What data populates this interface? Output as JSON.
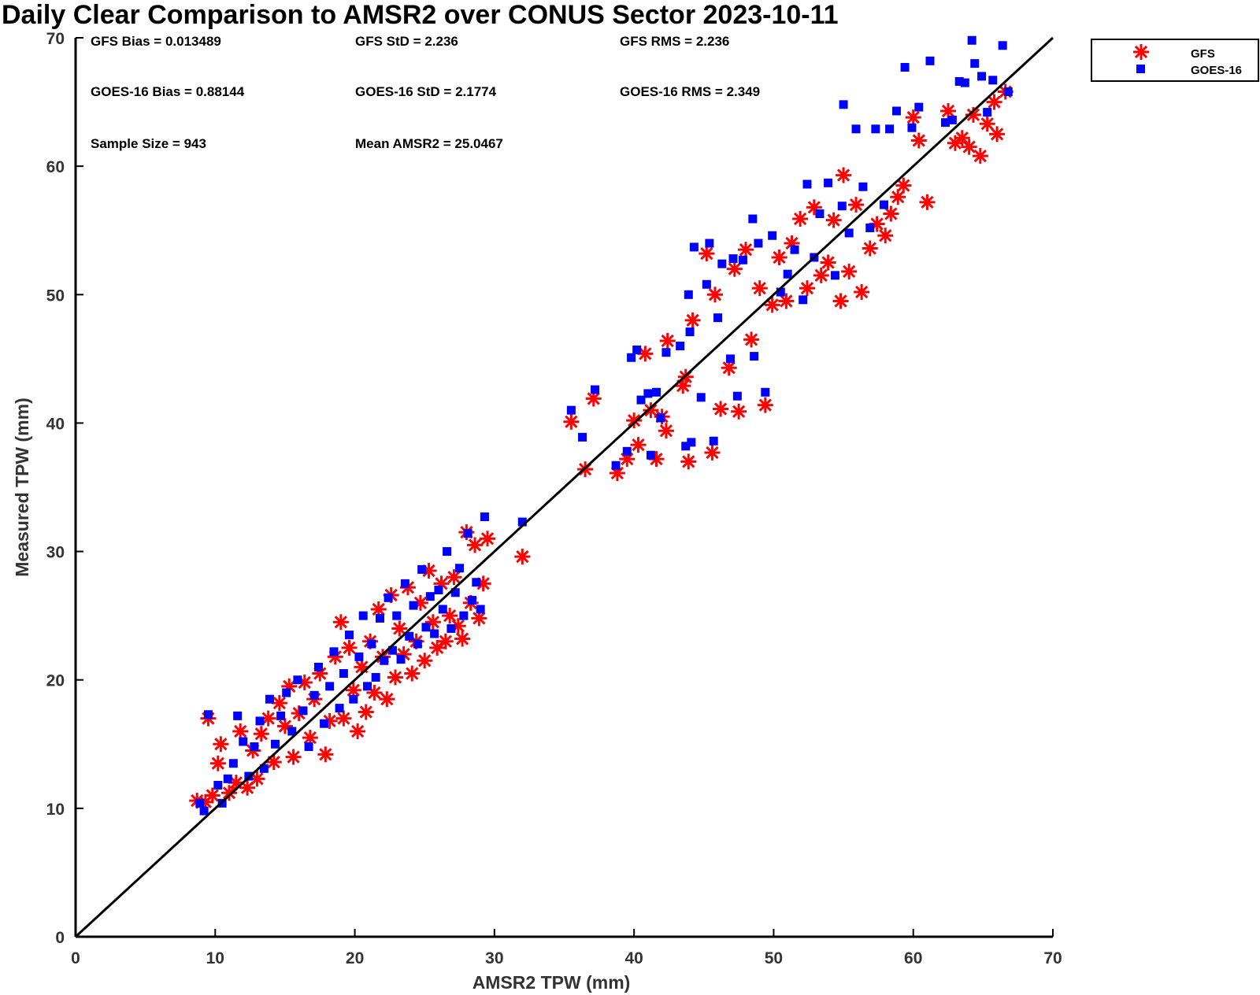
{
  "chart_data": {
    "type": "scatter",
    "title": "Daily Clear Comparison to AMSR2 over CONUS Sector 2023-10-11",
    "xlabel": "AMSR2 TPW (mm)",
    "ylabel": "Measured TPW (mm)",
    "xlim": [
      0,
      70
    ],
    "ylim": [
      0,
      70
    ],
    "xticks": [
      "0",
      "10",
      "20",
      "30",
      "40",
      "50",
      "60",
      "70"
    ],
    "yticks": [
      "0",
      "10",
      "20",
      "30",
      "40",
      "50",
      "60",
      "70"
    ],
    "grid": false,
    "legend_position": "outside top-right",
    "reference_line": {
      "type": "one-to-one",
      "from": [
        0,
        0
      ],
      "to": [
        70,
        70
      ],
      "color": "#000000"
    },
    "stats": [
      "GFS Bias = 0.013489",
      "GFS StD = 2.236",
      "GFS RMS = 2.236",
      "GOES-16 Bias = 0.88144",
      "GOES-16 StD = 2.1774",
      "GOES-16 RMS = 2.349",
      "Sample Size = 943",
      "Mean AMSR2 = 25.0467"
    ],
    "series": [
      {
        "name": "GFS",
        "marker": "asterisk",
        "color": "#ff0000",
        "points": [
          [
            8.7,
            10.6
          ],
          [
            9.3,
            10.5
          ],
          [
            9.5,
            17.0
          ],
          [
            9.8,
            11.0
          ],
          [
            10.2,
            13.5
          ],
          [
            10.4,
            15.0
          ],
          [
            11.0,
            11.2
          ],
          [
            11.5,
            12.0
          ],
          [
            11.8,
            16.0
          ],
          [
            12.3,
            11.6
          ],
          [
            12.7,
            14.5
          ],
          [
            13.0,
            12.3
          ],
          [
            13.3,
            15.8
          ],
          [
            13.8,
            17.0
          ],
          [
            14.2,
            13.6
          ],
          [
            14.6,
            18.2
          ],
          [
            15.0,
            16.4
          ],
          [
            15.3,
            19.5
          ],
          [
            15.6,
            14.0
          ],
          [
            16.0,
            17.4
          ],
          [
            16.4,
            19.8
          ],
          [
            16.8,
            15.5
          ],
          [
            17.1,
            18.5
          ],
          [
            17.5,
            20.5
          ],
          [
            17.9,
            14.2
          ],
          [
            18.2,
            16.8
          ],
          [
            18.6,
            21.8
          ],
          [
            19.0,
            24.5
          ],
          [
            19.2,
            17.0
          ],
          [
            19.6,
            22.5
          ],
          [
            19.9,
            19.2
          ],
          [
            20.2,
            16.0
          ],
          [
            20.5,
            21.0
          ],
          [
            20.8,
            17.5
          ],
          [
            21.1,
            23.0
          ],
          [
            21.4,
            19.0
          ],
          [
            21.7,
            25.5
          ],
          [
            22.0,
            21.8
          ],
          [
            22.3,
            18.5
          ],
          [
            22.6,
            26.6
          ],
          [
            22.9,
            20.2
          ],
          [
            23.2,
            24.0
          ],
          [
            23.5,
            22.0
          ],
          [
            23.8,
            27.2
          ],
          [
            24.1,
            20.5
          ],
          [
            24.4,
            23.0
          ],
          [
            24.7,
            26.0
          ],
          [
            25.0,
            21.5
          ],
          [
            25.3,
            28.5
          ],
          [
            25.6,
            24.5
          ],
          [
            25.9,
            22.5
          ],
          [
            26.2,
            27.5
          ],
          [
            26.5,
            23.0
          ],
          [
            26.8,
            25.0
          ],
          [
            27.1,
            28.0
          ],
          [
            27.4,
            24.2
          ],
          [
            27.7,
            23.2
          ],
          [
            28.0,
            31.5
          ],
          [
            28.3,
            26.0
          ],
          [
            28.6,
            30.5
          ],
          [
            28.9,
            24.8
          ],
          [
            29.2,
            27.5
          ],
          [
            29.5,
            31.0
          ],
          [
            32.0,
            29.6
          ],
          [
            35.5,
            40.1
          ],
          [
            36.5,
            36.4
          ],
          [
            37.1,
            41.9
          ],
          [
            38.8,
            36.1
          ],
          [
            39.5,
            37.2
          ],
          [
            40.0,
            40.2
          ],
          [
            40.3,
            38.3
          ],
          [
            40.8,
            45.4
          ],
          [
            41.2,
            41.0
          ],
          [
            41.6,
            37.2
          ],
          [
            42.0,
            40.5
          ],
          [
            42.4,
            46.4
          ],
          [
            42.3,
            39.4
          ],
          [
            43.5,
            42.9
          ],
          [
            43.9,
            37.0
          ],
          [
            43.7,
            43.6
          ],
          [
            44.2,
            48.0
          ],
          [
            45.2,
            53.2
          ],
          [
            45.6,
            37.7
          ],
          [
            45.8,
            50.0
          ],
          [
            46.2,
            41.1
          ],
          [
            46.8,
            44.3
          ],
          [
            47.2,
            52.0
          ],
          [
            47.5,
            40.9
          ],
          [
            48.0,
            53.5
          ],
          [
            48.4,
            46.5
          ],
          [
            49.0,
            50.5
          ],
          [
            49.4,
            41.4
          ],
          [
            49.9,
            49.2
          ],
          [
            50.4,
            52.9
          ],
          [
            50.9,
            49.5
          ],
          [
            51.3,
            54.0
          ],
          [
            51.9,
            55.9
          ],
          [
            52.4,
            50.5
          ],
          [
            52.9,
            56.8
          ],
          [
            53.4,
            51.5
          ],
          [
            53.9,
            52.5
          ],
          [
            54.3,
            55.8
          ],
          [
            54.8,
            49.5
          ],
          [
            55.0,
            59.3
          ],
          [
            55.4,
            51.8
          ],
          [
            55.9,
            57.0
          ],
          [
            56.3,
            50.2
          ],
          [
            56.9,
            53.6
          ],
          [
            57.4,
            55.5
          ],
          [
            58.0,
            54.6
          ],
          [
            58.4,
            56.3
          ],
          [
            58.9,
            57.6
          ],
          [
            59.3,
            58.5
          ],
          [
            60.0,
            63.8
          ],
          [
            60.4,
            62.0
          ],
          [
            61.0,
            57.2
          ],
          [
            62.5,
            64.3
          ],
          [
            63.0,
            61.8
          ],
          [
            63.5,
            62.2
          ],
          [
            64.0,
            61.5
          ],
          [
            64.3,
            64.0
          ],
          [
            64.8,
            60.8
          ],
          [
            65.3,
            63.3
          ],
          [
            66.0,
            62.5
          ],
          [
            65.8,
            65.0
          ],
          [
            66.6,
            65.8
          ]
        ]
      },
      {
        "name": "GOES-16",
        "marker": "square",
        "color": "#0000ff",
        "points": [
          [
            8.9,
            10.4
          ],
          [
            9.2,
            9.8
          ],
          [
            9.5,
            17.3
          ],
          [
            10.2,
            11.8
          ],
          [
            10.5,
            10.4
          ],
          [
            10.9,
            12.3
          ],
          [
            11.3,
            13.5
          ],
          [
            11.6,
            17.2
          ],
          [
            12.0,
            15.2
          ],
          [
            12.4,
            12.5
          ],
          [
            12.8,
            14.8
          ],
          [
            13.2,
            16.8
          ],
          [
            13.5,
            13.1
          ],
          [
            13.9,
            18.5
          ],
          [
            14.3,
            15.0
          ],
          [
            14.7,
            17.2
          ],
          [
            15.1,
            19.0
          ],
          [
            15.5,
            16.0
          ],
          [
            15.9,
            20.0
          ],
          [
            16.3,
            17.6
          ],
          [
            16.7,
            14.8
          ],
          [
            17.1,
            18.8
          ],
          [
            17.4,
            21.0
          ],
          [
            17.8,
            16.6
          ],
          [
            18.2,
            19.5
          ],
          [
            18.5,
            22.2
          ],
          [
            18.9,
            17.8
          ],
          [
            19.2,
            20.5
          ],
          [
            19.6,
            23.5
          ],
          [
            19.9,
            18.5
          ],
          [
            20.3,
            21.8
          ],
          [
            20.6,
            25.0
          ],
          [
            20.9,
            19.5
          ],
          [
            21.2,
            22.8
          ],
          [
            21.5,
            20.2
          ],
          [
            21.8,
            24.8
          ],
          [
            22.1,
            21.5
          ],
          [
            22.4,
            26.4
          ],
          [
            22.7,
            22.3
          ],
          [
            23.0,
            25.0
          ],
          [
            23.3,
            21.6
          ],
          [
            23.6,
            27.5
          ],
          [
            23.9,
            23.4
          ],
          [
            24.2,
            25.8
          ],
          [
            24.5,
            22.8
          ],
          [
            24.8,
            28.6
          ],
          [
            25.1,
            24.1
          ],
          [
            25.4,
            26.5
          ],
          [
            25.7,
            23.6
          ],
          [
            26.0,
            27.0
          ],
          [
            26.3,
            25.5
          ],
          [
            26.6,
            30.0
          ],
          [
            26.9,
            24.0
          ],
          [
            27.2,
            26.8
          ],
          [
            27.5,
            28.7
          ],
          [
            27.8,
            25.0
          ],
          [
            28.1,
            31.4
          ],
          [
            28.4,
            26.2
          ],
          [
            28.7,
            27.6
          ],
          [
            29.0,
            25.5
          ],
          [
            29.3,
            32.7
          ],
          [
            32.0,
            32.3
          ],
          [
            35.5,
            41.0
          ],
          [
            36.3,
            38.9
          ],
          [
            37.2,
            42.6
          ],
          [
            38.7,
            36.7
          ],
          [
            39.5,
            37.8
          ],
          [
            39.8,
            45.1
          ],
          [
            40.2,
            45.7
          ],
          [
            40.5,
            41.8
          ],
          [
            41.0,
            42.3
          ],
          [
            41.2,
            37.5
          ],
          [
            41.6,
            42.4
          ],
          [
            41.9,
            40.4
          ],
          [
            42.3,
            45.5
          ],
          [
            43.3,
            46.0
          ],
          [
            43.7,
            38.2
          ],
          [
            43.9,
            50.0
          ],
          [
            44.0,
            47.1
          ],
          [
            44.1,
            38.5
          ],
          [
            44.3,
            53.7
          ],
          [
            44.8,
            42.0
          ],
          [
            45.2,
            50.8
          ],
          [
            45.4,
            54.0
          ],
          [
            45.7,
            38.6
          ],
          [
            46.0,
            48.2
          ],
          [
            46.3,
            52.4
          ],
          [
            46.9,
            45.0
          ],
          [
            47.1,
            52.8
          ],
          [
            47.4,
            42.1
          ],
          [
            47.8,
            52.7
          ],
          [
            48.5,
            55.9
          ],
          [
            48.6,
            45.2
          ],
          [
            48.9,
            54.0
          ],
          [
            49.4,
            42.4
          ],
          [
            49.9,
            54.6
          ],
          [
            50.5,
            50.2
          ],
          [
            51.0,
            51.6
          ],
          [
            51.5,
            53.5
          ],
          [
            52.1,
            49.6
          ],
          [
            52.4,
            58.6
          ],
          [
            52.9,
            52.9
          ],
          [
            53.3,
            56.3
          ],
          [
            53.9,
            58.7
          ],
          [
            54.4,
            51.5
          ],
          [
            54.9,
            56.9
          ],
          [
            55.0,
            64.8
          ],
          [
            55.4,
            54.8
          ],
          [
            55.9,
            62.9
          ],
          [
            56.4,
            58.4
          ],
          [
            56.9,
            55.2
          ],
          [
            57.3,
            62.9
          ],
          [
            57.9,
            57.0
          ],
          [
            58.3,
            62.9
          ],
          [
            58.8,
            64.3
          ],
          [
            59.4,
            67.7
          ],
          [
            59.9,
            63.0
          ],
          [
            60.4,
            64.6
          ],
          [
            61.2,
            68.2
          ],
          [
            62.3,
            63.4
          ],
          [
            62.8,
            63.6
          ],
          [
            63.3,
            66.6
          ],
          [
            63.7,
            66.5
          ],
          [
            64.2,
            69.8
          ],
          [
            64.4,
            68.0
          ],
          [
            64.9,
            67.0
          ],
          [
            65.3,
            64.2
          ],
          [
            65.7,
            66.7
          ],
          [
            66.4,
            69.4
          ],
          [
            66.8,
            65.8
          ]
        ]
      }
    ]
  }
}
